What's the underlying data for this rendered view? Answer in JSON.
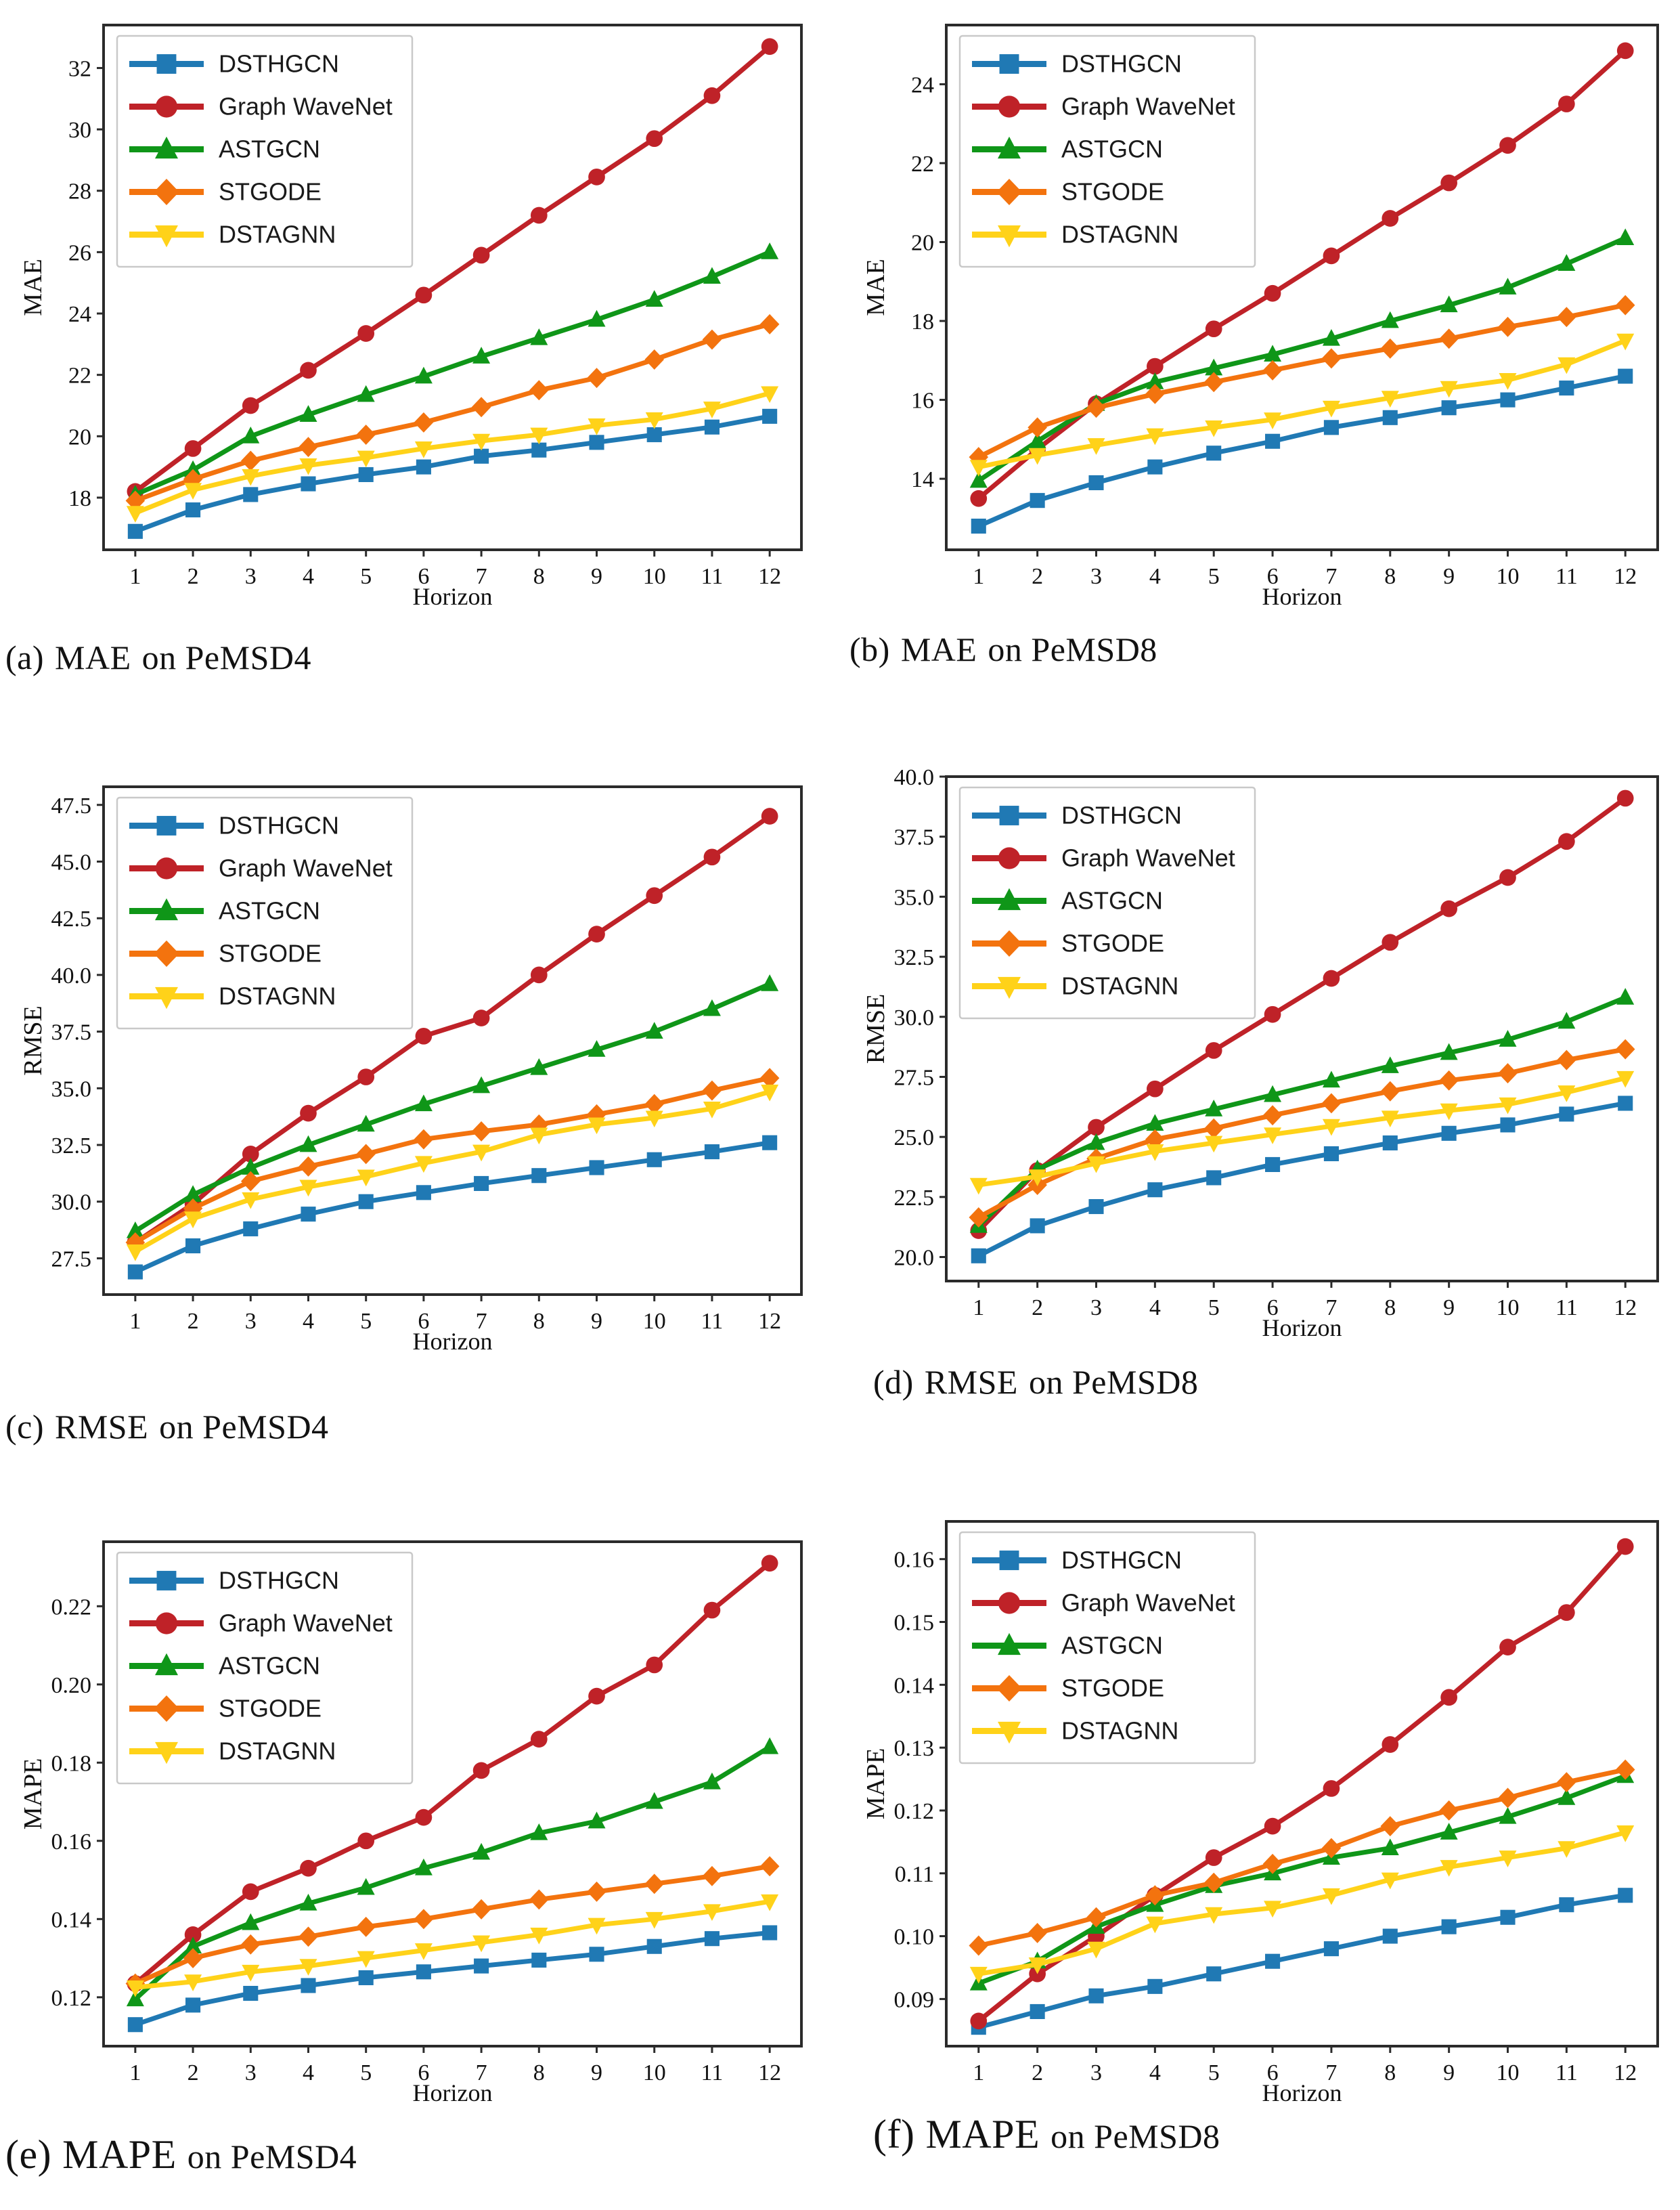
{
  "page": {
    "background": "#ffffff",
    "frame_color": "#2b2b2b",
    "tick_label_color": "#111111",
    "legend_border_color": "#c9c9c9"
  },
  "chart_data": [
    {
      "type": "line",
      "caption_label": "(a)",
      "caption_metric": "MAE",
      "caption_rest": "on PeMSD4",
      "title": "(a) MAE on PeMSD4",
      "xlabel": "Horizon",
      "ylabel": "MAE",
      "grid": false,
      "legend_position": "upper left",
      "x": [
        1,
        2,
        3,
        4,
        5,
        6,
        7,
        8,
        9,
        10,
        11,
        12
      ],
      "xtick_labels": [
        "1",
        "2",
        "3",
        "4",
        "5",
        "6",
        "7",
        "8",
        "9",
        "10",
        "11",
        "12"
      ],
      "xlim": [
        0.45,
        12.55
      ],
      "ylim": [
        16.3,
        33.4
      ],
      "ytick_values": [
        18,
        20,
        22,
        24,
        26,
        28,
        30,
        32
      ],
      "ytick_labels": [
        "18",
        "20",
        "22",
        "24",
        "26",
        "28",
        "30",
        "32"
      ],
      "series": [
        {
          "name": "DSTHGCN",
          "color": "#2079b4",
          "marker": "square",
          "values": [
            16.9,
            17.6,
            18.1,
            18.45,
            18.75,
            19.0,
            19.35,
            19.55,
            19.8,
            20.05,
            20.3,
            20.65
          ]
        },
        {
          "name": "Graph WaveNet",
          "color": "#bf2228",
          "marker": "circle",
          "values": [
            18.2,
            19.6,
            21.0,
            22.15,
            23.35,
            24.6,
            25.9,
            27.2,
            28.45,
            29.7,
            31.1,
            32.7
          ]
        },
        {
          "name": "ASTGCN",
          "color": "#0f9618",
          "marker": "triangle-up",
          "values": [
            18.1,
            18.9,
            20.0,
            20.7,
            21.35,
            21.95,
            22.6,
            23.2,
            23.8,
            24.45,
            25.2,
            26.0
          ]
        },
        {
          "name": "STGODE",
          "color": "#f3730e",
          "marker": "diamond",
          "values": [
            17.9,
            18.6,
            19.2,
            19.65,
            20.05,
            20.45,
            20.95,
            21.5,
            21.9,
            22.5,
            23.15,
            23.65
          ]
        },
        {
          "name": "DSTAGNN",
          "color": "#ffd219",
          "marker": "triangle-down",
          "values": [
            17.5,
            18.25,
            18.7,
            19.05,
            19.3,
            19.6,
            19.85,
            20.05,
            20.35,
            20.55,
            20.9,
            21.4
          ]
        }
      ]
    },
    {
      "type": "line",
      "caption_label": "(b)",
      "caption_metric": "MAE",
      "caption_rest": "on PeMSD8",
      "title": "(b) MAE on PeMSD8",
      "xlabel": "Horizon",
      "ylabel": "MAE",
      "grid": false,
      "legend_position": "upper left",
      "x": [
        1,
        2,
        3,
        4,
        5,
        6,
        7,
        8,
        9,
        10,
        11,
        12
      ],
      "xtick_labels": [
        "1",
        "2",
        "3",
        "4",
        "5",
        "6",
        "7",
        "8",
        "9",
        "10",
        "11",
        "12"
      ],
      "xlim": [
        0.45,
        12.55
      ],
      "ylim": [
        12.2,
        25.5
      ],
      "ytick_values": [
        14,
        16,
        18,
        20,
        22,
        24
      ],
      "ytick_labels": [
        "14",
        "16",
        "18",
        "20",
        "22",
        "24"
      ],
      "series": [
        {
          "name": "DSTHGCN",
          "color": "#2079b4",
          "marker": "square",
          "values": [
            12.8,
            13.45,
            13.9,
            14.3,
            14.65,
            14.95,
            15.3,
            15.55,
            15.8,
            16.0,
            16.3,
            16.6
          ]
        },
        {
          "name": "Graph WaveNet",
          "color": "#bf2228",
          "marker": "circle",
          "values": [
            13.5,
            14.75,
            15.9,
            16.85,
            17.8,
            18.7,
            19.65,
            20.6,
            21.5,
            22.45,
            23.5,
            24.85
          ]
        },
        {
          "name": "ASTGCN",
          "color": "#0f9618",
          "marker": "triangle-up",
          "values": [
            13.95,
            14.95,
            15.9,
            16.45,
            16.8,
            17.15,
            17.55,
            18.0,
            18.4,
            18.85,
            19.45,
            20.1
          ]
        },
        {
          "name": "STGODE",
          "color": "#f3730e",
          "marker": "diamond",
          "values": [
            14.55,
            15.3,
            15.8,
            16.15,
            16.45,
            16.75,
            17.05,
            17.3,
            17.55,
            17.85,
            18.1,
            18.4
          ]
        },
        {
          "name": "DSTAGNN",
          "color": "#ffd219",
          "marker": "triangle-down",
          "values": [
            14.3,
            14.6,
            14.85,
            15.1,
            15.3,
            15.5,
            15.8,
            16.05,
            16.3,
            16.5,
            16.9,
            17.5
          ]
        }
      ]
    },
    {
      "type": "line",
      "caption_label": "(c)",
      "caption_metric": "RMSE",
      "caption_rest": "on PeMSD4",
      "title": "(c) RMSE on PeMSD4",
      "xlabel": "Horizon",
      "ylabel": "RMSE",
      "grid": false,
      "legend_position": "upper left",
      "x": [
        1,
        2,
        3,
        4,
        5,
        6,
        7,
        8,
        9,
        10,
        11,
        12
      ],
      "xtick_labels": [
        "1",
        "2",
        "3",
        "4",
        "5",
        "6",
        "7",
        "8",
        "9",
        "10",
        "11",
        "12"
      ],
      "xlim": [
        0.45,
        12.55
      ],
      "ylim": [
        25.9,
        48.3
      ],
      "ytick_values": [
        27.5,
        30.0,
        32.5,
        35.0,
        37.5,
        40.0,
        42.5,
        45.0,
        47.5
      ],
      "ytick_labels": [
        "27.5",
        "30.0",
        "32.5",
        "35.0",
        "37.5",
        "40.0",
        "42.5",
        "45.0",
        "47.5"
      ],
      "series": [
        {
          "name": "DSTHGCN",
          "color": "#2079b4",
          "marker": "square",
          "values": [
            26.9,
            28.05,
            28.8,
            29.45,
            30.0,
            30.4,
            30.8,
            31.15,
            31.5,
            31.85,
            32.2,
            32.6
          ]
        },
        {
          "name": "Graph WaveNet",
          "color": "#bf2228",
          "marker": "circle",
          "values": [
            28.2,
            29.9,
            32.1,
            33.9,
            35.5,
            37.3,
            38.1,
            40.0,
            41.8,
            43.5,
            45.2,
            47.0
          ]
        },
        {
          "name": "ASTGCN",
          "color": "#0f9618",
          "marker": "triangle-up",
          "values": [
            28.7,
            30.3,
            31.5,
            32.5,
            33.4,
            34.3,
            35.1,
            35.9,
            36.7,
            37.5,
            38.5,
            39.6
          ]
        },
        {
          "name": "STGODE",
          "color": "#f3730e",
          "marker": "diamond",
          "values": [
            28.2,
            29.7,
            30.9,
            31.55,
            32.1,
            32.75,
            33.1,
            33.4,
            33.85,
            34.3,
            34.9,
            35.45
          ]
        },
        {
          "name": "DSTAGNN",
          "color": "#ffd219",
          "marker": "triangle-down",
          "values": [
            27.8,
            29.25,
            30.1,
            30.65,
            31.1,
            31.7,
            32.2,
            32.95,
            33.4,
            33.7,
            34.1,
            34.85
          ]
        }
      ]
    },
    {
      "type": "line",
      "caption_label": "(d)",
      "caption_metric": "RMSE",
      "caption_rest": "on PeMSD8",
      "title": "(d) RMSE on PeMSD8",
      "xlabel": "Horizon",
      "ylabel": "RMSE",
      "grid": false,
      "legend_position": "upper left",
      "x": [
        1,
        2,
        3,
        4,
        5,
        6,
        7,
        8,
        9,
        10,
        11,
        12
      ],
      "xtick_labels": [
        "1",
        "2",
        "3",
        "4",
        "5",
        "6",
        "7",
        "8",
        "9",
        "10",
        "11",
        "12"
      ],
      "xlim": [
        0.45,
        12.55
      ],
      "ylim": [
        19.0,
        40.0
      ],
      "ytick_values": [
        20.0,
        22.5,
        25.0,
        27.5,
        30.0,
        32.5,
        35.0,
        37.5,
        40.0
      ],
      "ytick_labels": [
        "20.0",
        "22.5",
        "25.0",
        "27.5",
        "30.0",
        "32.5",
        "35.0",
        "37.5",
        "40.0"
      ],
      "series": [
        {
          "name": "DSTHGCN",
          "color": "#2079b4",
          "marker": "square",
          "values": [
            20.05,
            21.3,
            22.1,
            22.8,
            23.3,
            23.85,
            24.3,
            24.75,
            25.15,
            25.5,
            25.95,
            26.4
          ]
        },
        {
          "name": "Graph WaveNet",
          "color": "#bf2228",
          "marker": "circle",
          "values": [
            21.1,
            23.6,
            25.4,
            27.0,
            28.6,
            30.1,
            31.6,
            33.1,
            34.5,
            35.8,
            37.3,
            39.1
          ]
        },
        {
          "name": "ASTGCN",
          "color": "#0f9618",
          "marker": "triangle-up",
          "values": [
            21.3,
            23.65,
            24.75,
            25.55,
            26.15,
            26.75,
            27.35,
            27.95,
            28.5,
            29.05,
            29.8,
            30.8
          ]
        },
        {
          "name": "STGODE",
          "color": "#f3730e",
          "marker": "diamond",
          "values": [
            21.65,
            23.0,
            24.1,
            24.9,
            25.35,
            25.9,
            26.4,
            26.9,
            27.35,
            27.65,
            28.2,
            28.65
          ]
        },
        {
          "name": "DSTAGNN",
          "color": "#ffd219",
          "marker": "triangle-down",
          "values": [
            23.0,
            23.35,
            23.9,
            24.4,
            24.75,
            25.1,
            25.45,
            25.8,
            26.1,
            26.35,
            26.85,
            27.45
          ]
        }
      ]
    },
    {
      "type": "line",
      "caption_label": "(e)",
      "caption_metric": "MAPE",
      "caption_rest": "on PeMSD4",
      "title": "(e) MAPE on PeMSD4",
      "xlabel": "Horizon",
      "ylabel": "MAPE",
      "grid": false,
      "legend_position": "upper left",
      "x": [
        1,
        2,
        3,
        4,
        5,
        6,
        7,
        8,
        9,
        10,
        11,
        12
      ],
      "xtick_labels": [
        "1",
        "2",
        "3",
        "4",
        "5",
        "6",
        "7",
        "8",
        "9",
        "10",
        "11",
        "12"
      ],
      "xlim": [
        0.45,
        12.55
      ],
      "ylim": [
        0.1075,
        0.2365
      ],
      "ytick_values": [
        0.12,
        0.14,
        0.16,
        0.18,
        0.2,
        0.22
      ],
      "ytick_labels": [
        "0.12",
        "0.14",
        "0.16",
        "0.18",
        "0.20",
        "0.22"
      ],
      "series": [
        {
          "name": "DSTHGCN",
          "color": "#2079b4",
          "marker": "square",
          "values": [
            0.113,
            0.118,
            0.121,
            0.123,
            0.125,
            0.1265,
            0.128,
            0.1295,
            0.131,
            0.133,
            0.135,
            0.1365
          ]
        },
        {
          "name": "Graph WaveNet",
          "color": "#bf2228",
          "marker": "circle",
          "values": [
            0.1235,
            0.136,
            0.147,
            0.153,
            0.16,
            0.166,
            0.178,
            0.186,
            0.197,
            0.205,
            0.219,
            0.231
          ]
        },
        {
          "name": "ASTGCN",
          "color": "#0f9618",
          "marker": "triangle-up",
          "values": [
            0.1195,
            0.133,
            0.139,
            0.144,
            0.148,
            0.153,
            0.157,
            0.162,
            0.165,
            0.17,
            0.175,
            0.184
          ]
        },
        {
          "name": "STGODE",
          "color": "#f3730e",
          "marker": "diamond",
          "values": [
            0.1235,
            0.13,
            0.1335,
            0.1355,
            0.138,
            0.14,
            0.1425,
            0.145,
            0.147,
            0.149,
            0.151,
            0.1535
          ]
        },
        {
          "name": "DSTAGNN",
          "color": "#ffd219",
          "marker": "triangle-down",
          "values": [
            0.1225,
            0.124,
            0.1265,
            0.128,
            0.13,
            0.132,
            0.134,
            0.136,
            0.1385,
            0.14,
            0.142,
            0.1445
          ]
        }
      ]
    },
    {
      "type": "line",
      "caption_label": "(f)",
      "caption_metric": "MAPE",
      "caption_rest": "on PeMSD8",
      "title": "(f) MAPE on PeMSD8",
      "xlabel": "Horizon",
      "ylabel": "MAPE",
      "grid": false,
      "legend_position": "upper left",
      "x": [
        1,
        2,
        3,
        4,
        5,
        6,
        7,
        8,
        9,
        10,
        11,
        12
      ],
      "xtick_labels": [
        "1",
        "2",
        "3",
        "4",
        "5",
        "6",
        "7",
        "8",
        "9",
        "10",
        "11",
        "12"
      ],
      "xlim": [
        0.45,
        12.55
      ],
      "ylim": [
        0.0825,
        0.166
      ],
      "ytick_values": [
        0.09,
        0.1,
        0.11,
        0.12,
        0.13,
        0.14,
        0.15,
        0.16
      ],
      "ytick_labels": [
        "0.09",
        "0.10",
        "0.11",
        "0.12",
        "0.13",
        "0.14",
        "0.15",
        "0.16"
      ],
      "series": [
        {
          "name": "DSTHGCN",
          "color": "#2079b4",
          "marker": "square",
          "values": [
            0.0855,
            0.088,
            0.0905,
            0.092,
            0.094,
            0.096,
            0.098,
            0.1,
            0.1015,
            0.103,
            0.105,
            0.1065
          ]
        },
        {
          "name": "Graph WaveNet",
          "color": "#bf2228",
          "marker": "circle",
          "values": [
            0.0865,
            0.094,
            0.1,
            0.1065,
            0.1125,
            0.1175,
            0.1235,
            0.1305,
            0.138,
            0.146,
            0.1515,
            0.162
          ]
        },
        {
          "name": "ASTGCN",
          "color": "#0f9618",
          "marker": "triangle-up",
          "values": [
            0.0925,
            0.096,
            0.1015,
            0.105,
            0.108,
            0.11,
            0.1125,
            0.114,
            0.1165,
            0.119,
            0.122,
            0.1255
          ]
        },
        {
          "name": "STGODE",
          "color": "#f3730e",
          "marker": "diamond",
          "values": [
            0.0985,
            0.1005,
            0.103,
            0.1065,
            0.1085,
            0.1115,
            0.114,
            0.1175,
            0.12,
            0.122,
            0.1245,
            0.1265
          ]
        },
        {
          "name": "DSTAGNN",
          "color": "#ffd219",
          "marker": "triangle-down",
          "values": [
            0.094,
            0.0955,
            0.098,
            0.102,
            0.1035,
            0.1045,
            0.1065,
            0.109,
            0.111,
            0.1125,
            0.114,
            0.1165
          ]
        }
      ]
    }
  ]
}
